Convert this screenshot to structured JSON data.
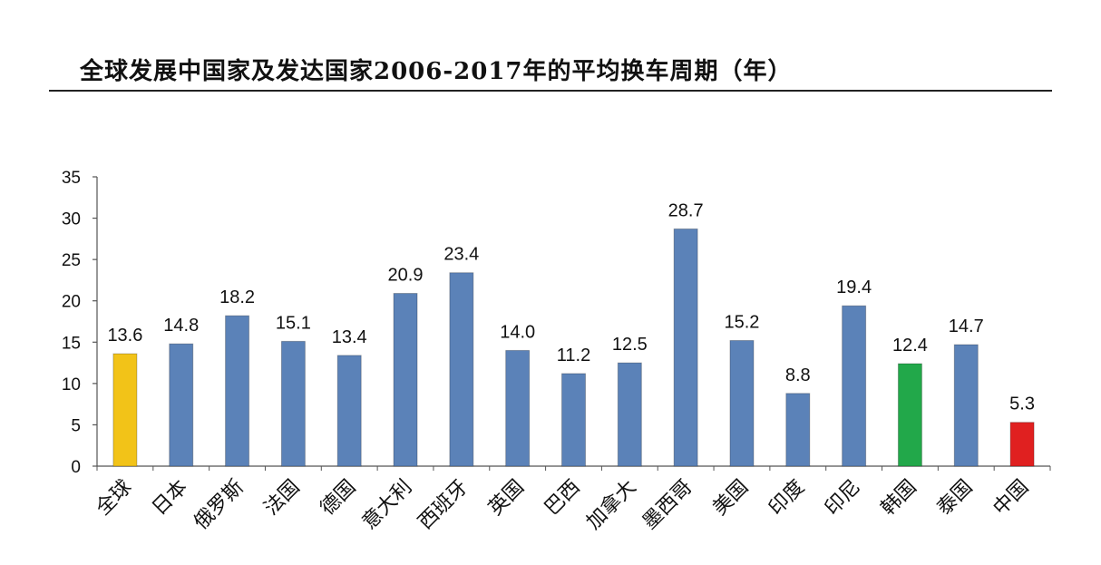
{
  "chart_data": {
    "type": "bar",
    "title": "全球发展中国家及发达国家2006-2017年的平均换车周期（年）",
    "xlabel": "",
    "ylabel": "",
    "ylim": [
      0,
      35
    ],
    "yticks": [
      0,
      5,
      10,
      15,
      20,
      25,
      30,
      35
    ],
    "categories": [
      "全球",
      "日本",
      "俄罗斯",
      "法国",
      "德国",
      "意大利",
      "西班牙",
      "英国",
      "巴西",
      "加拿大",
      "墨西哥",
      "美国",
      "印度",
      "印尼",
      "韩国",
      "泰国",
      "中国"
    ],
    "values": [
      13.6,
      14.8,
      18.2,
      15.1,
      13.4,
      20.9,
      23.4,
      14.0,
      11.2,
      12.5,
      28.7,
      15.2,
      8.8,
      19.4,
      12.4,
      14.7,
      5.3
    ],
    "value_labels": [
      "13.6",
      "14.8",
      "18.2",
      "15.1",
      "13.4",
      "20.9",
      "23.4",
      "14.0",
      "11.2",
      "12.5",
      "28.7",
      "15.2",
      "8.8",
      "19.4",
      "12.4",
      "14.7",
      "5.3"
    ],
    "colors": {
      "default": "#5b82b8",
      "highlight": {
        "全球": "#f2c318",
        "韩国": "#22a84a",
        "中国": "#e02020"
      },
      "stroke_default": "#3f6596"
    }
  }
}
